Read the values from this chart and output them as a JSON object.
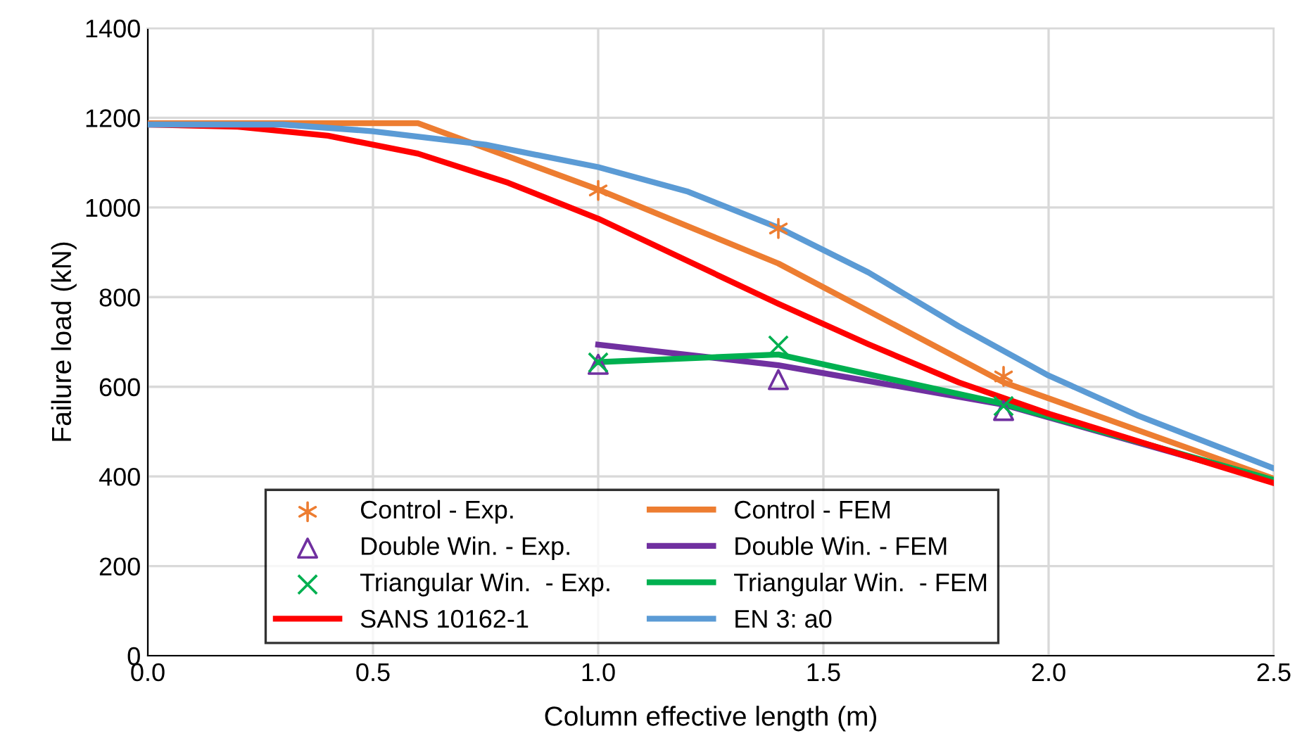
{
  "chart_data": {
    "type": "line",
    "xlabel": "Column effective length (m)",
    "ylabel": "Failure load (kN)",
    "xlim": [
      0,
      2.5
    ],
    "xticks": [
      {
        "value": 0,
        "label": "0.0"
      },
      0.5,
      {
        "value": 1,
        "label": "1.0"
      },
      1.5,
      {
        "value": 2,
        "label": "2.0"
      },
      2.5
    ],
    "ylim": [
      0,
      1400
    ],
    "yticks": [
      0,
      200,
      400,
      600,
      800,
      1000,
      1200,
      1400
    ],
    "grid": true,
    "legend": "bottom",
    "series": [
      {
        "name": "Control - Exp.",
        "type": "scatter",
        "color": "#ed7d31",
        "x": [
          1.0,
          1.4,
          1.9
        ],
        "values": [
          1038,
          953,
          623
        ]
      },
      {
        "name": "Control - FEM",
        "marker": "none",
        "color": "#ed7d31",
        "x": [
          0,
          0.6,
          1.0,
          1.4,
          1.9,
          2.5
        ],
        "values": [
          1188,
          1188,
          1040,
          875,
          610,
          395
        ]
      },
      {
        "name": "Double Win. - Exp.",
        "type": "scatter",
        "marker": "triangle",
        "color": "#7030a0",
        "x": [
          1.0,
          1.4,
          1.9
        ],
        "values": [
          650,
          616,
          547
        ]
      },
      {
        "name": "Double Win. - FEM",
        "marker": "none",
        "color": "#7030a0",
        "x": [
          1.0,
          1.4,
          1.9,
          2.5
        ],
        "values": [
          694,
          648,
          560,
          390
        ]
      },
      {
        "name": "Triangular Win.  - Exp.",
        "type": "scatter",
        "marker": "cross",
        "color": "#00b050",
        "x": [
          1.0,
          1.4,
          1.9
        ],
        "values": [
          654,
          692,
          557
        ]
      },
      {
        "name": "Triangular Win.  - FEM",
        "marker": "none",
        "color": "#00b050",
        "x": [
          1.0,
          1.4,
          1.9,
          2.5
        ],
        "values": [
          655,
          672,
          562,
          392
        ]
      },
      {
        "name": "SANS 10162-1",
        "marker": "none",
        "color": "#ff0000",
        "x": [
          0,
          0.2,
          0.4,
          0.6,
          0.8,
          1.0,
          1.2,
          1.4,
          1.6,
          1.8,
          2.0,
          2.2,
          2.5
        ],
        "values": [
          1185,
          1180,
          1160,
          1120,
          1055,
          975,
          880,
          785,
          695,
          610,
          540,
          478,
          385
        ]
      },
      {
        "name": "EN 3: a0",
        "marker": "none",
        "color": "#5b9bd5",
        "x": [
          0,
          0.3,
          0.5,
          0.75,
          1.0,
          1.2,
          1.4,
          1.6,
          1.8,
          2.0,
          2.2,
          2.5
        ],
        "values": [
          1185,
          1185,
          1170,
          1140,
          1090,
          1035,
          955,
          855,
          735,
          625,
          535,
          418
        ]
      }
    ]
  }
}
